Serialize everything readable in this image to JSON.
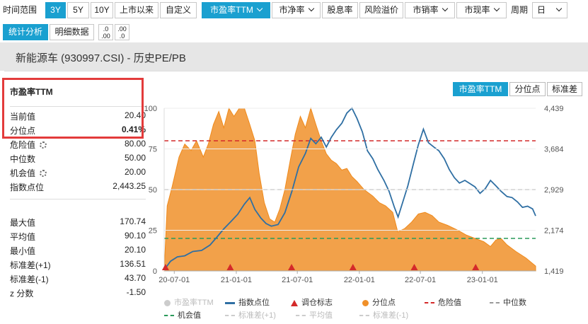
{
  "toolbar": {
    "range_label": "时间范围",
    "ranges": [
      "3Y",
      "5Y",
      "10Y",
      "上市以来",
      "自定义"
    ],
    "metrics": [
      "市盈率TTM",
      "市净率",
      "股息率",
      "风险溢价",
      "市销率",
      "市现率"
    ],
    "period_label": "周期",
    "period_value": "日"
  },
  "tabs2": {
    "stats": "统计分析",
    "detail": "明细数据"
  },
  "title": "新能源车 (930997.CSI) - 历史PE/PB",
  "stats": {
    "header": "市盈率TTM",
    "rows": [
      {
        "k": "当前值",
        "v": "20.40"
      },
      {
        "k": "分位点",
        "v": "0.41%"
      },
      {
        "k": "危险值",
        "v": "80.00"
      },
      {
        "k": "中位数",
        "v": "50.00"
      },
      {
        "k": "机会值",
        "v": "20.00"
      },
      {
        "k": "指数点位",
        "v": "2,443.25"
      },
      {
        "k": "最大值",
        "v": "170.74"
      },
      {
        "k": "平均值",
        "v": "90.10"
      },
      {
        "k": "最小值",
        "v": "20.10"
      },
      {
        "k": "标准差(+1)",
        "v": "136.51"
      },
      {
        "k": "标准差(-1)",
        "v": "43.70"
      },
      {
        "k": "z 分数",
        "v": "-1.50"
      }
    ]
  },
  "chart_tabs": [
    "市盈率TTM",
    "分位点",
    "标准差"
  ],
  "legend": [
    "市盈率TTM",
    "指数点位",
    "调仓标志",
    "分位点",
    "危险值",
    "中位数",
    "机会值",
    "标准差(+1)",
    "平均值",
    "标准差(-1)"
  ],
  "colors": {
    "accent": "#1aa0d0",
    "percentile": "#f0902a",
    "index": "#2f6fa3",
    "danger": "#d42a2a",
    "median": "#999999",
    "opportunity": "#2a9a5a",
    "highlight": "#e33b3b"
  },
  "chart_data": {
    "type": "area",
    "x_ticks": [
      "20-07-01",
      "21-01-01",
      "21-07-01",
      "22-01-01",
      "22-07-01",
      "23-01-01"
    ],
    "y_left_ticks": [
      "0",
      "25",
      "50",
      "75",
      "100"
    ],
    "y_left_range": [
      0,
      100
    ],
    "y_right_ticks": [
      "1,419",
      "2,174",
      "2,929",
      "3,684",
      "4,439"
    ],
    "y_right_range": [
      1419,
      4439
    ],
    "x_range": [
      "2020-06-01",
      "2023-06-08"
    ],
    "series": [
      {
        "name": "分位点",
        "points": [
          [
            "2020-06-01",
            0
          ],
          [
            "2020-06-10",
            40
          ],
          [
            "2020-06-25",
            52
          ],
          [
            "2020-07-15",
            70
          ],
          [
            "2020-08-01",
            78
          ],
          [
            "2020-08-20",
            74
          ],
          [
            "2020-09-05",
            80
          ],
          [
            "2020-09-25",
            70
          ],
          [
            "2020-10-10",
            78
          ],
          [
            "2020-10-25",
            90
          ],
          [
            "2020-11-10",
            98
          ],
          [
            "2020-11-25",
            88
          ],
          [
            "2020-12-10",
            100
          ],
          [
            "2020-12-25",
            95
          ],
          [
            "2021-01-10",
            100
          ],
          [
            "2021-01-25",
            100
          ],
          [
            "2021-02-10",
            90
          ],
          [
            "2021-02-25",
            80
          ],
          [
            "2021-03-10",
            60
          ],
          [
            "2021-03-25",
            42
          ],
          [
            "2021-04-10",
            32
          ],
          [
            "2021-04-25",
            30
          ],
          [
            "2021-05-10",
            38
          ],
          [
            "2021-05-25",
            50
          ],
          [
            "2021-06-10",
            68
          ],
          [
            "2021-06-25",
            84
          ],
          [
            "2021-07-10",
            95
          ],
          [
            "2021-07-25",
            88
          ],
          [
            "2021-08-10",
            100
          ],
          [
            "2021-08-25",
            90
          ],
          [
            "2021-09-10",
            80
          ],
          [
            "2021-09-25",
            72
          ],
          [
            "2021-10-10",
            68
          ],
          [
            "2021-10-25",
            66
          ],
          [
            "2021-11-10",
            62
          ],
          [
            "2021-11-25",
            63
          ],
          [
            "2021-12-10",
            58
          ],
          [
            "2021-12-25",
            55
          ],
          [
            "2022-01-15",
            50
          ],
          [
            "2022-02-10",
            46
          ],
          [
            "2022-03-01",
            42
          ],
          [
            "2022-03-20",
            40
          ],
          [
            "2022-04-10",
            36
          ],
          [
            "2022-04-25",
            24
          ],
          [
            "2022-05-15",
            26
          ],
          [
            "2022-06-05",
            30
          ],
          [
            "2022-06-25",
            35
          ],
          [
            "2022-07-15",
            36
          ],
          [
            "2022-08-05",
            34
          ],
          [
            "2022-08-25",
            30
          ],
          [
            "2022-09-20",
            28
          ],
          [
            "2022-10-20",
            25
          ],
          [
            "2022-11-15",
            22
          ],
          [
            "2022-12-10",
            20
          ],
          [
            "2023-01-05",
            18
          ],
          [
            "2023-01-25",
            15
          ],
          [
            "2023-02-10",
            19
          ],
          [
            "2023-02-25",
            20
          ],
          [
            "2023-03-15",
            16
          ],
          [
            "2023-04-10",
            12
          ],
          [
            "2023-05-10",
            8
          ],
          [
            "2023-06-08",
            3
          ]
        ]
      },
      {
        "name": "指数点位",
        "points": [
          [
            "2020-06-01",
            1440
          ],
          [
            "2020-06-20",
            1600
          ],
          [
            "2020-07-10",
            1680
          ],
          [
            "2020-08-01",
            1700
          ],
          [
            "2020-08-25",
            1780
          ],
          [
            "2020-09-20",
            1800
          ],
          [
            "2020-10-15",
            1900
          ],
          [
            "2020-11-05",
            2050
          ],
          [
            "2020-11-25",
            2200
          ],
          [
            "2020-12-15",
            2330
          ],
          [
            "2021-01-05",
            2470
          ],
          [
            "2021-01-25",
            2660
          ],
          [
            "2021-02-10",
            2780
          ],
          [
            "2021-02-25",
            2560
          ],
          [
            "2021-03-15",
            2400
          ],
          [
            "2021-03-30",
            2300
          ],
          [
            "2021-04-15",
            2250
          ],
          [
            "2021-05-05",
            2280
          ],
          [
            "2021-05-25",
            2500
          ],
          [
            "2021-06-15",
            2900
          ],
          [
            "2021-07-05",
            3350
          ],
          [
            "2021-07-25",
            3600
          ],
          [
            "2021-08-10",
            3880
          ],
          [
            "2021-08-25",
            3780
          ],
          [
            "2021-09-10",
            3900
          ],
          [
            "2021-09-25",
            3720
          ],
          [
            "2021-10-10",
            3900
          ],
          [
            "2021-10-25",
            4040
          ],
          [
            "2021-11-10",
            4160
          ],
          [
            "2021-11-25",
            4350
          ],
          [
            "2021-12-10",
            4440
          ],
          [
            "2021-12-25",
            4250
          ],
          [
            "2022-01-10",
            4000
          ],
          [
            "2022-01-25",
            3650
          ],
          [
            "2022-02-10",
            3500
          ],
          [
            "2022-02-25",
            3300
          ],
          [
            "2022-03-15",
            3100
          ],
          [
            "2022-03-30",
            2900
          ],
          [
            "2022-04-15",
            2600
          ],
          [
            "2022-04-26",
            2420
          ],
          [
            "2022-05-10",
            2700
          ],
          [
            "2022-05-25",
            3000
          ],
          [
            "2022-06-10",
            3400
          ],
          [
            "2022-06-25",
            3760
          ],
          [
            "2022-07-10",
            4050
          ],
          [
            "2022-07-25",
            3800
          ],
          [
            "2022-08-10",
            3720
          ],
          [
            "2022-08-25",
            3650
          ],
          [
            "2022-09-10",
            3500
          ],
          [
            "2022-09-25",
            3300
          ],
          [
            "2022-10-10",
            3150
          ],
          [
            "2022-10-25",
            3050
          ],
          [
            "2022-11-10",
            3100
          ],
          [
            "2022-11-25",
            3040
          ],
          [
            "2022-12-10",
            2980
          ],
          [
            "2022-12-25",
            2860
          ],
          [
            "2023-01-10",
            2950
          ],
          [
            "2023-01-25",
            3100
          ],
          [
            "2023-02-10",
            3000
          ],
          [
            "2023-02-25",
            2900
          ],
          [
            "2023-03-15",
            2800
          ],
          [
            "2023-03-30",
            2780
          ],
          [
            "2023-04-15",
            2700
          ],
          [
            "2023-04-30",
            2600
          ],
          [
            "2023-05-15",
            2620
          ],
          [
            "2023-05-30",
            2570
          ],
          [
            "2023-06-08",
            2440
          ]
        ]
      },
      {
        "name": "危险值",
        "value": 80
      },
      {
        "name": "中位数",
        "value": 50
      },
      {
        "name": "机会值",
        "value": 20
      }
    ],
    "rebalance_markers": [
      "2020-06-05",
      "2020-12-14",
      "2021-06-14",
      "2021-12-13",
      "2022-06-13",
      "2022-12-12"
    ]
  }
}
